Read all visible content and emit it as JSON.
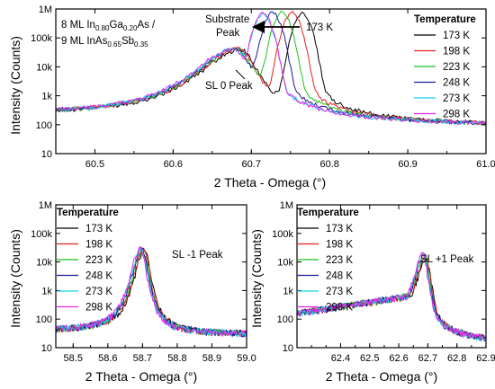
{
  "colors": {
    "173 K": "#000000",
    "198 K": "#e8201c",
    "223 K": "#1fbf1f",
    "248 K": "#1a1a9c",
    "273 K": "#16d4ee",
    "298 K": "#e825e8"
  },
  "chart_data": [
    {
      "type": "line",
      "log_y": true,
      "xlabel": "2 Theta - Omega (°)",
      "ylabel": "Intensity (Counts)",
      "xlim": [
        60.45,
        61.0
      ],
      "ylim": [
        10,
        1000000
      ],
      "x_ticks": [
        "60.5",
        "60.6",
        "60.7",
        "60.8",
        "60.9",
        "61.0"
      ],
      "y_ticks": [
        "10",
        "100",
        "1k",
        "10k",
        "100k",
        "1M"
      ],
      "legend_title": "Temperature",
      "legend_position": "top-right",
      "series": [
        {
          "name": "173 K"
        },
        {
          "name": "198 K"
        },
        {
          "name": "223 K"
        },
        {
          "name": "248 K"
        },
        {
          "name": "273 K"
        },
        {
          "name": "298 K"
        }
      ],
      "peaks": {
        "substrate": [
          {
            "x": 60.765,
            "y": 700000
          },
          {
            "x": 60.752,
            "y": 720000
          },
          {
            "x": 60.739,
            "y": 740000
          },
          {
            "x": 60.727,
            "y": 700000
          },
          {
            "x": 60.715,
            "y": 680000
          },
          {
            "x": 60.715,
            "y": 720000
          }
        ],
        "sl0": [
          {
            "x": 60.686,
            "y": 40000
          },
          {
            "x": 60.684,
            "y": 42000
          },
          {
            "x": 60.682,
            "y": 41000
          },
          {
            "x": 60.68,
            "y": 40000
          },
          {
            "x": 60.678,
            "y": 41000
          },
          {
            "x": 60.676,
            "y": 40000
          }
        ]
      },
      "baseline": {
        "left": 200,
        "right": 100
      },
      "annotations": [
        {
          "line1": "8 ML In",
          "sub1": "0.80",
          "line2": "Ga",
          "sub2": "0.20",
          "line3": "As /"
        },
        {
          "line1": "9 ML InAs",
          "sub1": "0.65",
          "line2": "Sb",
          "sub2": "0.35"
        }
      ],
      "labels": {
        "substrate_line1": "Substrate",
        "substrate_line2": "Peak",
        "arrow_label": "173 K",
        "sl0": "SL 0 Peak"
      }
    },
    {
      "type": "line",
      "log_y": true,
      "xlabel": "2 Theta - Omega (°)",
      "ylabel": "Intensity (Counts)",
      "xlim": [
        58.45,
        59.0
      ],
      "ylim": [
        10,
        1000000
      ],
      "x_ticks": [
        "58.5",
        "58.6",
        "58.7",
        "58.8",
        "58.9",
        "59.0"
      ],
      "y_ticks": [
        "10",
        "100",
        "1k",
        "10k",
        "100k",
        "1M"
      ],
      "legend_title": "Temperature",
      "legend_position": "top-left",
      "series": [
        {
          "name": "173 K"
        },
        {
          "name": "198 K"
        },
        {
          "name": "223 K"
        },
        {
          "name": "248 K"
        },
        {
          "name": "273 K"
        },
        {
          "name": "298 K"
        }
      ],
      "peaks": [
        {
          "x": 58.705,
          "y": 25000
        },
        {
          "x": 58.703,
          "y": 27000
        },
        {
          "x": 58.7,
          "y": 26000
        },
        {
          "x": 58.698,
          "y": 28000
        },
        {
          "x": 58.695,
          "y": 27000
        },
        {
          "x": 58.693,
          "y": 29000
        }
      ],
      "baseline": {
        "left": 40,
        "right": 30
      },
      "label": "SL -1 Peak"
    },
    {
      "type": "line",
      "log_y": true,
      "xlabel": "2 Theta - Omega (°)",
      "ylabel": "Intensity (Counts)",
      "xlim": [
        62.25,
        62.9
      ],
      "ylim": [
        10,
        1000000
      ],
      "x_ticks": [
        "62.4",
        "62.5",
        "62.6",
        "62.7",
        "62.8",
        "62.9"
      ],
      "y_ticks": [
        "10",
        "100",
        "1k",
        "10k",
        "100k",
        "1M"
      ],
      "legend_title": "Temperature",
      "legend_position": "top-left",
      "series": [
        {
          "name": "173 K"
        },
        {
          "name": "198 K"
        },
        {
          "name": "223 K"
        },
        {
          "name": "248 K"
        },
        {
          "name": "273 K"
        },
        {
          "name": "298 K"
        }
      ],
      "peaks": [
        {
          "x": 62.695,
          "y": 13000
        },
        {
          "x": 62.693,
          "y": 15000
        },
        {
          "x": 62.69,
          "y": 16000
        },
        {
          "x": 62.688,
          "y": 17000
        },
        {
          "x": 62.686,
          "y": 18000
        },
        {
          "x": 62.684,
          "y": 19000
        }
      ],
      "baseline": {
        "left": 150,
        "right": 20
      },
      "label": "SL +1 Peak"
    }
  ]
}
